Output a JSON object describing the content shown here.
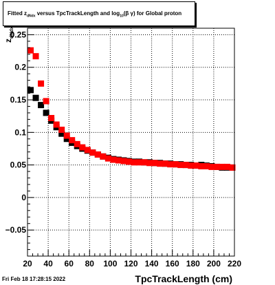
{
  "title_parts": {
    "pre": "Fitted  z",
    "sub1": "dNdx",
    "mid": "  versus TpcTrackLength and log",
    "sub2": "10",
    "post": "(β  γ) for Global proton"
  },
  "timestamp": "Fri Feb 18 17:28:15 2022",
  "chart_data": {
    "type": "scatter",
    "title": "Fitted z_dNdx versus TpcTrackLength and log10(β γ) for Global proton",
    "xlabel": "TpcTrackLength (cm)",
    "ylabel": "z_dNdx",
    "xlim": [
      20,
      220
    ],
    "ylim": [
      -0.09,
      0.26
    ],
    "x_ticks": [
      20,
      40,
      60,
      80,
      100,
      120,
      140,
      160,
      180,
      200,
      220
    ],
    "x_tick_labels": [
      "20",
      "40",
      "60",
      "80",
      "100",
      "120",
      "140",
      "160",
      "180",
      "200",
      "220"
    ],
    "y_ticks": [
      -0.05,
      0,
      0.05,
      0.1,
      0.15,
      0.2,
      0.25
    ],
    "y_tick_labels": [
      "−0.05",
      "0",
      "0.05",
      "0.1",
      "0.15",
      "0.2",
      "0.25"
    ],
    "grid": true,
    "series": [
      {
        "color": "#000000",
        "x": [
          23,
          28,
          33,
          38,
          43,
          48,
          53,
          58,
          63,
          68,
          73,
          78,
          83,
          88,
          93,
          98,
          103,
          108,
          113,
          118,
          123,
          128,
          133,
          138,
          143,
          148,
          153,
          158,
          163,
          168,
          173,
          178,
          183,
          188,
          193,
          198,
          203,
          208,
          213,
          218
        ],
        "y": [
          0.165,
          0.153,
          0.142,
          0.13,
          0.118,
          0.108,
          0.098,
          0.09,
          0.084,
          0.079,
          0.075,
          0.072,
          0.069,
          0.066,
          0.063,
          0.061,
          0.059,
          0.058,
          0.057,
          0.056,
          0.055,
          0.055,
          0.054,
          0.054,
          0.053,
          0.053,
          0.052,
          0.052,
          0.051,
          0.051,
          0.05,
          0.05,
          0.049,
          0.05,
          0.049,
          0.048,
          0.047,
          0.046,
          0.046,
          0.046
        ]
      },
      {
        "color": "#ff0000",
        "x": [
          23,
          28,
          33,
          38,
          43,
          48,
          53,
          58,
          63,
          68,
          73,
          78,
          83,
          88,
          93,
          98,
          103,
          108,
          113,
          118,
          123,
          128,
          133,
          138,
          143,
          148,
          153,
          158,
          163,
          168,
          173,
          178,
          183,
          188,
          193,
          198,
          203,
          208,
          213,
          218
        ],
        "y": [
          0.226,
          0.217,
          0.175,
          0.148,
          0.122,
          0.112,
          0.104,
          0.095,
          0.088,
          0.082,
          0.077,
          0.073,
          0.069,
          0.066,
          0.063,
          0.06,
          0.058,
          0.057,
          0.056,
          0.055,
          0.054,
          0.054,
          0.054,
          0.053,
          0.053,
          0.052,
          0.052,
          0.051,
          0.051,
          0.05,
          0.05,
          0.049,
          0.049,
          0.048,
          0.048,
          0.047,
          0.047,
          0.047,
          0.047,
          0.046
        ]
      }
    ]
  }
}
